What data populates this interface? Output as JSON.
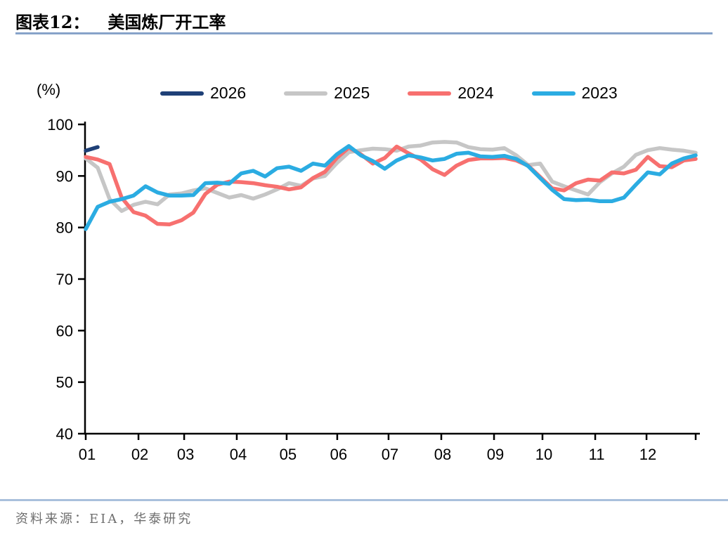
{
  "header": {
    "label": "图表12：",
    "title": "美国炼厂开工率"
  },
  "y_axis": {
    "unit_label": "(%)"
  },
  "footer": {
    "source_text": "资料来源：EIA，华泰研究"
  },
  "chart_data": {
    "type": "line",
    "title": "美国炼厂开工率",
    "ylabel": "(%)",
    "ylim": [
      40,
      100
    ],
    "y_ticks": [
      40,
      50,
      60,
      70,
      80,
      90,
      100
    ],
    "grid": false,
    "legend_position": "top",
    "x_unit": "week of year (52 weekly points, Jan–Dec)",
    "x_tick_labels": [
      "01",
      "02",
      "03",
      "04",
      "05",
      "06",
      "07",
      "08",
      "09",
      "10",
      "11",
      "12"
    ],
    "month_tick_weeks": [
      0,
      4.41,
      8.23,
      12.63,
      16.8,
      21.03,
      25.32,
      29.73,
      34.14,
      38.19,
      42.6,
      46.89
    ],
    "end_tick_week": 51,
    "draw_order": [
      "2025",
      "2024",
      "2023",
      "2026"
    ],
    "series": [
      {
        "name": "2026",
        "color": "#1F4077",
        "start_week": 0,
        "values": [
          94.9,
          95.6
        ]
      },
      {
        "name": "2025",
        "color": "#C6C6C6",
        "start_week": 0,
        "values": [
          93.4,
          91.6,
          85.5,
          83.2,
          84.4,
          85.0,
          84.5,
          86.4,
          86.6,
          87.2,
          87.6,
          86.7,
          85.8,
          86.3,
          85.6,
          86.4,
          87.4,
          88.6,
          88.1,
          89.5,
          90.0,
          92.5,
          94.6,
          95.0,
          95.3,
          95.2,
          94.9,
          95.7,
          95.9,
          96.5,
          96.6,
          96.5,
          95.6,
          95.2,
          95.1,
          95.4,
          94.0,
          92.1,
          92.4,
          88.9,
          88.0,
          87.2,
          86.4,
          88.8,
          90.5,
          91.8,
          94.1,
          95.0,
          95.4,
          95.1,
          94.9,
          94.5
        ]
      },
      {
        "name": "2024",
        "color": "#F7706F",
        "start_week": 0,
        "values": [
          93.7,
          93.2,
          92.3,
          85.8,
          83.0,
          82.3,
          80.7,
          80.6,
          81.4,
          82.9,
          86.5,
          88.3,
          88.9,
          88.8,
          88.6,
          88.2,
          87.9,
          87.4,
          87.8,
          89.6,
          90.8,
          93.5,
          95.5,
          94.2,
          92.4,
          93.5,
          95.7,
          94.4,
          93.2,
          91.3,
          90.2,
          92.0,
          93.1,
          93.4,
          93.4,
          93.5,
          93.0,
          92.0,
          89.8,
          87.6,
          87.2,
          88.6,
          89.3,
          89.1,
          90.7,
          90.5,
          91.2,
          93.7,
          91.9,
          91.7,
          93.0,
          93.3
        ]
      },
      {
        "name": "2023",
        "color": "#2BACE2",
        "start_week": 0,
        "values": [
          79.7,
          84.0,
          85.0,
          85.5,
          86.2,
          88.0,
          86.8,
          86.2,
          86.2,
          86.3,
          88.6,
          88.7,
          88.5,
          90.5,
          91.0,
          89.9,
          91.5,
          91.8,
          91.0,
          92.4,
          92.0,
          94.2,
          95.8,
          94.0,
          92.9,
          91.4,
          93.0,
          94.0,
          93.6,
          93.0,
          93.3,
          94.3,
          94.5,
          93.8,
          93.7,
          93.9,
          93.3,
          91.9,
          89.6,
          87.3,
          85.5,
          85.3,
          85.4,
          85.1,
          85.1,
          85.8,
          88.3,
          90.7,
          90.3,
          92.4,
          93.4,
          94.0
        ]
      }
    ]
  }
}
